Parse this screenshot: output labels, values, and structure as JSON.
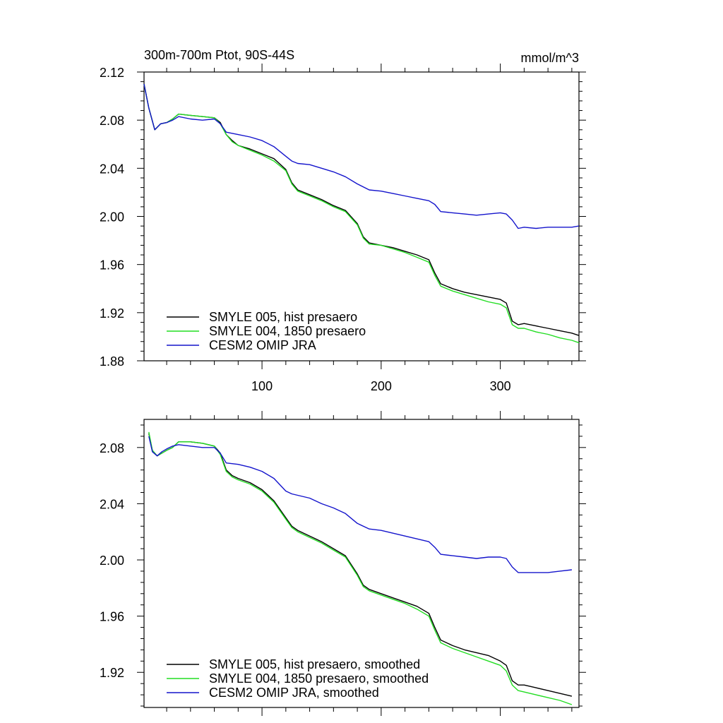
{
  "colors": {
    "black": "#000000",
    "green": "#22dd22",
    "blue": "#1414cc"
  },
  "chart_data": [
    {
      "type": "line",
      "title": "300m-700m Ptot, 90S-44S",
      "units": "mmol/m^3",
      "xlabel": "",
      "ylabel": "",
      "xlim": [
        1,
        366
      ],
      "ylim": [
        1.88,
        2.12
      ],
      "xticks": [
        100,
        200,
        300
      ],
      "xtick_labels": [
        "100",
        "200",
        "300"
      ],
      "yticks": [
        1.88,
        1.92,
        1.96,
        2.0,
        2.04,
        2.08,
        2.12
      ],
      "ytick_labels": [
        "1.88",
        "1.92",
        "1.96",
        "2.00",
        "2.04",
        "2.08",
        "2.12"
      ],
      "legend_position": "bottom-left",
      "series": [
        {
          "name": "SMYLE 005, hist presaero",
          "color": "#000000",
          "x": [
            1,
            5,
            10,
            15,
            20,
            25,
            30,
            40,
            50,
            60,
            65,
            70,
            75,
            80,
            90,
            100,
            110,
            120,
            125,
            130,
            140,
            150,
            160,
            170,
            180,
            185,
            190,
            200,
            210,
            220,
            230,
            240,
            245,
            250,
            260,
            270,
            280,
            290,
            300,
            305,
            310,
            315,
            320,
            330,
            340,
            350,
            360,
            366
          ],
          "y": [
            2.11,
            2.09,
            2.072,
            2.077,
            2.078,
            2.081,
            2.085,
            2.084,
            2.083,
            2.082,
            2.078,
            2.068,
            2.063,
            2.059,
            2.056,
            2.052,
            2.048,
            2.039,
            2.028,
            2.022,
            2.018,
            2.014,
            2.009,
            2.005,
            1.994,
            1.983,
            1.978,
            1.976,
            1.974,
            1.971,
            1.968,
            1.964,
            1.953,
            1.944,
            1.94,
            1.937,
            1.935,
            1.933,
            1.931,
            1.928,
            1.913,
            1.91,
            1.911,
            1.909,
            1.907,
            1.905,
            1.903,
            1.901
          ]
        },
        {
          "name": "SMYLE 004, 1850 presaero",
          "color": "#22dd22",
          "x": [
            1,
            5,
            10,
            15,
            20,
            25,
            30,
            40,
            50,
            60,
            65,
            70,
            75,
            80,
            90,
            100,
            110,
            120,
            125,
            130,
            140,
            150,
            160,
            170,
            180,
            185,
            190,
            200,
            210,
            220,
            230,
            240,
            245,
            250,
            260,
            270,
            280,
            290,
            300,
            305,
            310,
            315,
            320,
            330,
            340,
            350,
            360,
            366
          ],
          "y": [
            2.11,
            2.09,
            2.072,
            2.077,
            2.078,
            2.081,
            2.085,
            2.084,
            2.083,
            2.082,
            2.077,
            2.068,
            2.062,
            2.059,
            2.055,
            2.051,
            2.046,
            2.038,
            2.027,
            2.021,
            2.017,
            2.013,
            2.008,
            2.004,
            1.993,
            1.982,
            1.977,
            1.976,
            1.973,
            1.97,
            1.966,
            1.962,
            1.951,
            1.942,
            1.938,
            1.935,
            1.932,
            1.929,
            1.927,
            1.924,
            1.91,
            1.907,
            1.907,
            1.904,
            1.902,
            1.899,
            1.897,
            1.895
          ]
        },
        {
          "name": "CESM2 OMIP JRA",
          "color": "#1414cc",
          "x": [
            1,
            5,
            10,
            15,
            20,
            25,
            30,
            40,
            50,
            60,
            65,
            70,
            80,
            90,
            100,
            110,
            120,
            125,
            130,
            140,
            150,
            160,
            170,
            180,
            190,
            200,
            210,
            220,
            230,
            240,
            245,
            250,
            260,
            270,
            280,
            290,
            300,
            305,
            310,
            315,
            320,
            330,
            340,
            350,
            360,
            366
          ],
          "y": [
            2.11,
            2.09,
            2.072,
            2.077,
            2.078,
            2.08,
            2.083,
            2.081,
            2.08,
            2.081,
            2.077,
            2.07,
            2.068,
            2.066,
            2.063,
            2.058,
            2.05,
            2.046,
            2.044,
            2.043,
            2.04,
            2.037,
            2.033,
            2.027,
            2.022,
            2.021,
            2.019,
            2.017,
            2.015,
            2.013,
            2.01,
            2.004,
            2.003,
            2.002,
            2.001,
            2.002,
            2.003,
            2.002,
            1.997,
            1.99,
            1.991,
            1.99,
            1.991,
            1.991,
            1.991,
            1.992
          ]
        }
      ]
    },
    {
      "type": "line",
      "title": "",
      "units": "",
      "xlabel": "",
      "ylabel": "",
      "xlim": [
        1,
        366
      ],
      "ylim": [
        1.895,
        2.1
      ],
      "xticks": [
        100,
        200,
        300
      ],
      "xtick_labels": [
        "",
        "",
        ""
      ],
      "yticks": [
        1.92,
        1.96,
        2.0,
        2.04,
        2.08
      ],
      "ytick_labels": [
        "1.92",
        "1.96",
        "2.00",
        "2.04",
        "2.08"
      ],
      "legend_position": "bottom-left",
      "series": [
        {
          "name": "SMYLE 005, hist presaero, smoothed",
          "color": "#000000",
          "x": [
            5,
            8,
            12,
            16,
            20,
            25,
            30,
            40,
            50,
            60,
            65,
            70,
            75,
            80,
            90,
            100,
            110,
            120,
            125,
            130,
            140,
            150,
            160,
            170,
            180,
            185,
            190,
            200,
            210,
            220,
            230,
            240,
            245,
            250,
            260,
            270,
            280,
            290,
            300,
            305,
            310,
            315,
            320,
            330,
            340,
            350,
            360
          ],
          "y": [
            2.09,
            2.078,
            2.074,
            2.076,
            2.078,
            2.08,
            2.084,
            2.084,
            2.083,
            2.081,
            2.076,
            2.064,
            2.06,
            2.058,
            2.055,
            2.05,
            2.042,
            2.03,
            2.024,
            2.021,
            2.017,
            2.013,
            2.008,
            2.003,
            1.99,
            1.982,
            1.979,
            1.976,
            1.973,
            1.97,
            1.967,
            1.962,
            1.952,
            1.943,
            1.939,
            1.936,
            1.934,
            1.932,
            1.928,
            1.925,
            1.914,
            1.911,
            1.911,
            1.909,
            1.907,
            1.905,
            1.903
          ]
        },
        {
          "name": "SMYLE 004, 1850 presaero, smoothed",
          "color": "#22dd22",
          "x": [
            5,
            8,
            12,
            16,
            20,
            25,
            30,
            40,
            50,
            60,
            65,
            70,
            75,
            80,
            90,
            100,
            110,
            120,
            125,
            130,
            140,
            150,
            160,
            170,
            180,
            185,
            190,
            200,
            210,
            220,
            230,
            240,
            245,
            250,
            260,
            270,
            280,
            290,
            300,
            305,
            310,
            315,
            320,
            330,
            340,
            350,
            360
          ],
          "y": [
            2.091,
            2.078,
            2.074,
            2.076,
            2.078,
            2.08,
            2.084,
            2.084,
            2.083,
            2.081,
            2.075,
            2.063,
            2.059,
            2.057,
            2.054,
            2.049,
            2.041,
            2.029,
            2.023,
            2.02,
            2.016,
            2.012,
            2.007,
            2.002,
            1.989,
            1.981,
            1.978,
            1.975,
            1.972,
            1.969,
            1.965,
            1.96,
            1.95,
            1.941,
            1.937,
            1.934,
            1.931,
            1.928,
            1.925,
            1.921,
            1.911,
            1.907,
            1.906,
            1.904,
            1.902,
            1.9,
            1.897
          ]
        },
        {
          "name": "CESM2 OMIP JRA, smoothed",
          "color": "#1414cc",
          "x": [
            5,
            8,
            12,
            16,
            20,
            25,
            30,
            40,
            50,
            60,
            65,
            70,
            80,
            90,
            100,
            110,
            120,
            125,
            130,
            140,
            150,
            160,
            170,
            180,
            190,
            200,
            210,
            220,
            230,
            240,
            245,
            250,
            260,
            270,
            280,
            290,
            300,
            305,
            310,
            315,
            320,
            330,
            340,
            350,
            360
          ],
          "y": [
            2.088,
            2.077,
            2.074,
            2.077,
            2.079,
            2.081,
            2.082,
            2.081,
            2.08,
            2.08,
            2.076,
            2.069,
            2.068,
            2.066,
            2.063,
            2.058,
            2.049,
            2.047,
            2.046,
            2.044,
            2.04,
            2.037,
            2.033,
            2.026,
            2.022,
            2.021,
            2.019,
            2.017,
            2.015,
            2.013,
            2.009,
            2.004,
            2.003,
            2.002,
            2.001,
            2.002,
            2.002,
            2.001,
            1.995,
            1.991,
            1.991,
            1.991,
            1.991,
            1.992,
            1.993
          ]
        }
      ]
    }
  ]
}
